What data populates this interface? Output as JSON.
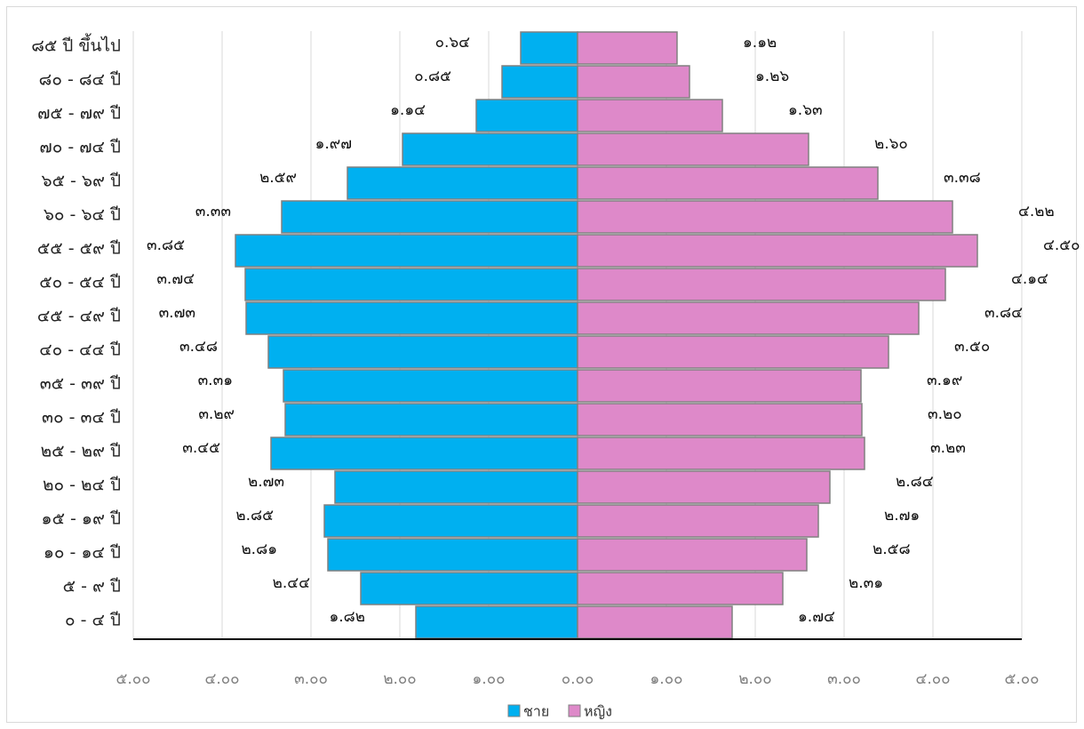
{
  "chart_data": {
    "type": "bar",
    "orientation": "horizontal",
    "subtype": "population-pyramid",
    "title": "",
    "categories": [
      "๐ - ๔ ปี",
      "๕ - ๙ ปี",
      "๑๐ - ๑๔ ปี",
      "๑๕ - ๑๙ ปี",
      "๒๐ - ๒๔ ปี",
      "๒๕ - ๒๙ ปี",
      "๓๐ - ๓๔ ปี",
      "๓๕ - ๓๙ ปี",
      "๔๐ - ๔๔ ปี",
      "๔๕ - ๔๙ ปี",
      "๕๐ - ๕๔ ปี",
      "๕๕ - ๕๙ ปี",
      "๖๐ - ๖๔ ปี",
      "๖๕ - ๖๙ ปี",
      "๗๐ - ๗๔ ปี",
      "๗๕ - ๗๙ ปี",
      "๘๐ - ๘๔ ปี",
      "๘๕ ปี ขึ้นไป"
    ],
    "series": [
      {
        "name": "ชาย",
        "color": "#00b0f0",
        "values": [
          1.82,
          2.44,
          2.81,
          2.85,
          2.73,
          3.45,
          3.29,
          3.31,
          3.48,
          3.73,
          3.74,
          3.85,
          3.33,
          2.59,
          1.97,
          1.14,
          0.85,
          0.64
        ],
        "labels": [
          "๑.๘๒",
          "๒.๔๔",
          "๒.๘๑",
          "๒.๘๕",
          "๒.๗๓",
          "๓.๔๕",
          "๓.๒๙",
          "๓.๓๑",
          "๓.๔๘",
          "๓.๗๓",
          "๓.๗๔",
          "๓.๘๕",
          "๓.๓๓",
          "๒.๕๙",
          "๑.๙๗",
          "๑.๑๔",
          "๐.๘๕",
          "๐.๖๔"
        ]
      },
      {
        "name": "หญิง",
        "color": "#de89c9",
        "values": [
          1.74,
          2.31,
          2.58,
          2.71,
          2.84,
          3.23,
          3.2,
          3.19,
          3.5,
          3.84,
          4.14,
          4.5,
          4.22,
          3.38,
          2.6,
          1.63,
          1.26,
          1.12
        ],
        "labels": [
          "๑.๗๔",
          "๒.๓๑",
          "๒.๕๘",
          "๒.๗๑",
          "๒.๘๔",
          "๓.๒๓",
          "๓.๒๐",
          "๓.๑๙",
          "๓.๕๐",
          "๓.๘๔",
          "๔.๑๔",
          "๔.๕๐",
          "๔.๒๒",
          "๓.๓๘",
          "๒.๖๐",
          "๑.๖๓",
          "๑.๒๖",
          "๑.๑๒"
        ]
      }
    ],
    "xlim": [
      -5,
      5
    ],
    "xticks": [
      -5,
      -4,
      -3,
      -2,
      -1,
      0,
      1,
      2,
      3,
      4,
      5
    ],
    "xtick_labels": [
      "๕.๐๐",
      "๔.๐๐",
      "๓.๐๐",
      "๒.๐๐",
      "๑.๐๐",
      "๐.๐๐",
      "๑.๐๐",
      "๒.๐๐",
      "๓.๐๐",
      "๔.๐๐",
      "๕.๐๐"
    ],
    "grid": true,
    "legend": {
      "placement": "bottom-center",
      "entries": [
        "ชาย",
        "หญิง"
      ]
    },
    "bar_edge_color": "#808080"
  }
}
